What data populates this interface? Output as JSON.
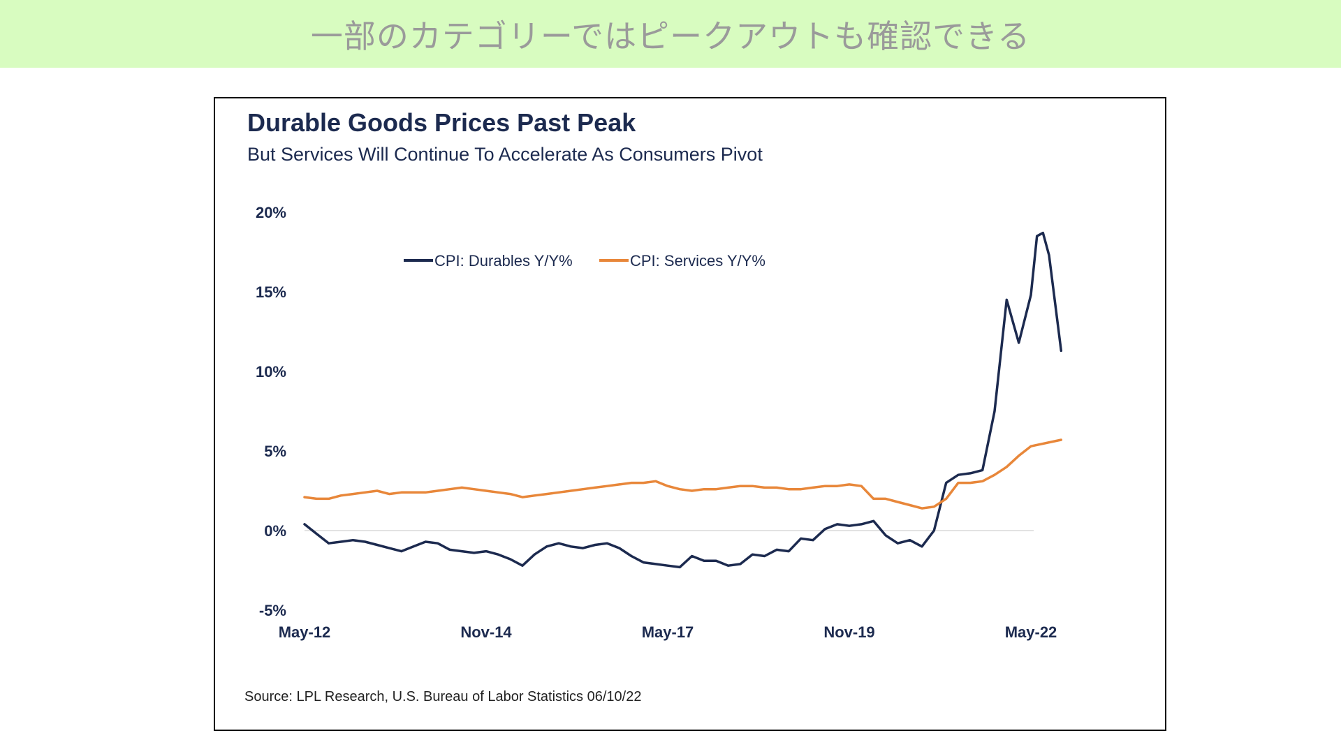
{
  "banner": {
    "text": "一部のカテゴリーではピークアウトも確認できる"
  },
  "chart": {
    "title": "Durable Goods Prices Past Peak",
    "subtitle": "But Services Will Continue To Accelerate As Consumers Pivot",
    "source": "Source: LPL Research, U.S. Bureau of Labor Statistics 06/10/22"
  },
  "chart_data": {
    "type": "line",
    "title": "Durable Goods Prices Past Peak",
    "subtitle": "But Services Will Continue To Accelerate As Consumers Pivot",
    "xlabel": "",
    "ylabel": "",
    "x_range": [
      "2012-05",
      "2022-05"
    ],
    "ylim": [
      -5,
      20
    ],
    "y_ticks": [
      {
        "value": 20,
        "label": "20%"
      },
      {
        "value": 15,
        "label": "15%"
      },
      {
        "value": 10,
        "label": "10%"
      },
      {
        "value": 5,
        "label": "5%"
      },
      {
        "value": 0,
        "label": "0%"
      },
      {
        "value": -5,
        "label": "-5%"
      }
    ],
    "x_ticks": [
      {
        "date": "2012-05",
        "label": "May-12"
      },
      {
        "date": "2014-11",
        "label": "Nov-14"
      },
      {
        "date": "2017-05",
        "label": "May-17"
      },
      {
        "date": "2019-11",
        "label": "Nov-19"
      },
      {
        "date": "2022-05",
        "label": "May-22"
      }
    ],
    "zero_line": true,
    "grid": false,
    "legend": "top-center",
    "series": [
      {
        "name": "CPI: Durables Y/Y%",
        "color": "#1c2a4f",
        "points": [
          [
            "2012-05",
            0.4
          ],
          [
            "2012-07",
            -0.2
          ],
          [
            "2012-09",
            -0.8
          ],
          [
            "2012-11",
            -0.7
          ],
          [
            "2013-01",
            -0.6
          ],
          [
            "2013-03",
            -0.7
          ],
          [
            "2013-05",
            -0.9
          ],
          [
            "2013-07",
            -1.1
          ],
          [
            "2013-09",
            -1.3
          ],
          [
            "2013-11",
            -1.0
          ],
          [
            "2014-01",
            -0.7
          ],
          [
            "2014-03",
            -0.8
          ],
          [
            "2014-05",
            -1.2
          ],
          [
            "2014-07",
            -1.3
          ],
          [
            "2014-09",
            -1.4
          ],
          [
            "2014-11",
            -1.3
          ],
          [
            "2015-01",
            -1.5
          ],
          [
            "2015-03",
            -1.8
          ],
          [
            "2015-05",
            -2.2
          ],
          [
            "2015-07",
            -1.5
          ],
          [
            "2015-09",
            -1.0
          ],
          [
            "2015-11",
            -0.8
          ],
          [
            "2016-01",
            -1.0
          ],
          [
            "2016-03",
            -1.1
          ],
          [
            "2016-05",
            -0.9
          ],
          [
            "2016-07",
            -0.8
          ],
          [
            "2016-09",
            -1.1
          ],
          [
            "2016-11",
            -1.6
          ],
          [
            "2017-01",
            -2.0
          ],
          [
            "2017-03",
            -2.1
          ],
          [
            "2017-05",
            -2.2
          ],
          [
            "2017-07",
            -2.3
          ],
          [
            "2017-09",
            -1.6
          ],
          [
            "2017-11",
            -1.9
          ],
          [
            "2018-01",
            -1.9
          ],
          [
            "2018-03",
            -2.2
          ],
          [
            "2018-05",
            -2.1
          ],
          [
            "2018-07",
            -1.5
          ],
          [
            "2018-09",
            -1.6
          ],
          [
            "2018-11",
            -1.2
          ],
          [
            "2019-01",
            -1.3
          ],
          [
            "2019-03",
            -0.5
          ],
          [
            "2019-05",
            -0.6
          ],
          [
            "2019-07",
            0.1
          ],
          [
            "2019-09",
            0.4
          ],
          [
            "2019-11",
            0.3
          ],
          [
            "2020-01",
            0.4
          ],
          [
            "2020-03",
            0.6
          ],
          [
            "2020-05",
            -0.3
          ],
          [
            "2020-07",
            -0.8
          ],
          [
            "2020-09",
            -0.6
          ],
          [
            "2020-11",
            -1.0
          ],
          [
            "2021-01",
            0.0
          ],
          [
            "2021-03",
            3.0
          ],
          [
            "2021-05",
            3.5
          ],
          [
            "2021-07",
            3.6
          ],
          [
            "2021-09",
            3.8
          ],
          [
            "2021-11",
            7.5
          ],
          [
            "2022-01",
            14.5
          ],
          [
            "2022-03",
            11.8
          ],
          [
            "2022-05",
            14.8
          ],
          [
            "2022-06",
            18.5
          ],
          [
            "2022-07",
            18.7
          ],
          [
            "2022-08",
            17.3
          ],
          [
            "2022-10",
            11.3
          ]
        ]
      },
      {
        "name": "CPI: Services Y/Y%",
        "color": "#e8873a",
        "points": [
          [
            "2012-05",
            2.1
          ],
          [
            "2012-07",
            2.0
          ],
          [
            "2012-09",
            2.0
          ],
          [
            "2012-11",
            2.2
          ],
          [
            "2013-01",
            2.3
          ],
          [
            "2013-03",
            2.4
          ],
          [
            "2013-05",
            2.5
          ],
          [
            "2013-07",
            2.3
          ],
          [
            "2013-09",
            2.4
          ],
          [
            "2013-11",
            2.4
          ],
          [
            "2014-01",
            2.4
          ],
          [
            "2014-03",
            2.5
          ],
          [
            "2014-05",
            2.6
          ],
          [
            "2014-07",
            2.7
          ],
          [
            "2014-09",
            2.6
          ],
          [
            "2014-11",
            2.5
          ],
          [
            "2015-01",
            2.4
          ],
          [
            "2015-03",
            2.3
          ],
          [
            "2015-05",
            2.1
          ],
          [
            "2015-07",
            2.2
          ],
          [
            "2015-09",
            2.3
          ],
          [
            "2015-11",
            2.4
          ],
          [
            "2016-01",
            2.5
          ],
          [
            "2016-03",
            2.6
          ],
          [
            "2016-05",
            2.7
          ],
          [
            "2016-07",
            2.8
          ],
          [
            "2016-09",
            2.9
          ],
          [
            "2016-11",
            3.0
          ],
          [
            "2017-01",
            3.0
          ],
          [
            "2017-03",
            3.1
          ],
          [
            "2017-05",
            2.8
          ],
          [
            "2017-07",
            2.6
          ],
          [
            "2017-09",
            2.5
          ],
          [
            "2017-11",
            2.6
          ],
          [
            "2018-01",
            2.6
          ],
          [
            "2018-03",
            2.7
          ],
          [
            "2018-05",
            2.8
          ],
          [
            "2018-07",
            2.8
          ],
          [
            "2018-09",
            2.7
          ],
          [
            "2018-11",
            2.7
          ],
          [
            "2019-01",
            2.6
          ],
          [
            "2019-03",
            2.6
          ],
          [
            "2019-05",
            2.7
          ],
          [
            "2019-07",
            2.8
          ],
          [
            "2019-09",
            2.8
          ],
          [
            "2019-11",
            2.9
          ],
          [
            "2020-01",
            2.8
          ],
          [
            "2020-03",
            2.0
          ],
          [
            "2020-05",
            2.0
          ],
          [
            "2020-07",
            1.8
          ],
          [
            "2020-09",
            1.6
          ],
          [
            "2020-11",
            1.4
          ],
          [
            "2021-01",
            1.5
          ],
          [
            "2021-03",
            2.0
          ],
          [
            "2021-05",
            3.0
          ],
          [
            "2021-07",
            3.0
          ],
          [
            "2021-09",
            3.1
          ],
          [
            "2021-11",
            3.5
          ],
          [
            "2022-01",
            4.0
          ],
          [
            "2022-03",
            4.7
          ],
          [
            "2022-05",
            5.3
          ],
          [
            "2022-10",
            5.7
          ]
        ]
      }
    ]
  }
}
